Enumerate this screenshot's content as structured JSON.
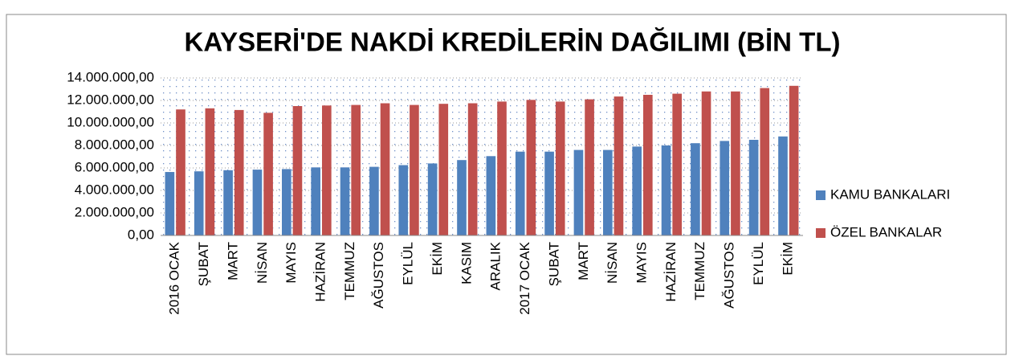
{
  "chart_data": {
    "type": "bar",
    "title": "KAYSERİ'DE NAKDİ KREDİLERİN DAĞILIMI (BİN TL)",
    "categories": [
      "2016 OCAK",
      "ŞUBAT",
      "MART",
      "NİSAN",
      "MAYIS",
      "HAZİRAN",
      "TEMMUZ",
      "AĞUSTOS",
      "EYLÜL",
      "EKİM",
      "KASIM",
      "ARALIK",
      "2017 OCAK",
      "ŞUBAT",
      "MART",
      "NİSAN",
      "MAYIS",
      "HAZİRAN",
      "TEMMUZ",
      "AĞUSTOS",
      "EYLÜL",
      "EKİM"
    ],
    "series": [
      {
        "name": "KAMU BANKALARI",
        "color": "#4f81bd",
        "values": [
          5640000,
          5700000,
          5800000,
          5850000,
          5900000,
          6050000,
          6050000,
          6100000,
          6250000,
          6400000,
          6700000,
          7050000,
          7450000,
          7450000,
          7600000,
          7600000,
          7900000,
          8000000,
          8200000,
          8400000,
          8500000,
          8800000
        ]
      },
      {
        "name": "ÖZEL BANKALAR",
        "color": "#c0504d",
        "values": [
          11200000,
          11300000,
          11150000,
          10900000,
          11500000,
          11550000,
          11600000,
          11750000,
          11600000,
          11700000,
          11750000,
          11900000,
          12050000,
          11900000,
          12100000,
          12350000,
          12500000,
          12600000,
          12800000,
          12800000,
          13100000,
          13300000
        ]
      }
    ],
    "ylim": [
      0,
      14000000
    ],
    "yticks": [
      {
        "value": 0,
        "label": "0,00"
      },
      {
        "value": 2000000,
        "label": "2.000.000,00"
      },
      {
        "value": 4000000,
        "label": "4.000.000,00"
      },
      {
        "value": 6000000,
        "label": "6.000.000,00"
      },
      {
        "value": 8000000,
        "label": "8.000.000,00"
      },
      {
        "value": 10000000,
        "label": "10.000.000,00"
      },
      {
        "value": 12000000,
        "label": "12.000.000,00"
      },
      {
        "value": 14000000,
        "label": "14.000.000,00"
      }
    ],
    "grid": true,
    "legend": "right"
  }
}
